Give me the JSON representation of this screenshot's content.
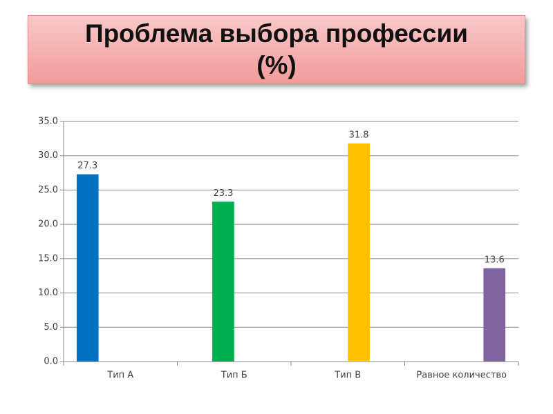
{
  "chart_data": {
    "type": "bar",
    "title": "Проблема выбора профессии (%)",
    "categories": [
      "Тип А",
      "Тип Б",
      "Тип В",
      "Равное количество"
    ],
    "series": [
      {
        "color": "#0070c0",
        "values": [
          27.3,
          null,
          null,
          null
        ]
      },
      {
        "color": "#00b050",
        "values": [
          null,
          23.3,
          null,
          null
        ]
      },
      {
        "color": "#ffc000",
        "values": [
          null,
          null,
          31.8,
          null
        ]
      },
      {
        "color": "#8064a2",
        "values": [
          null,
          null,
          null,
          13.6
        ]
      }
    ],
    "ylim": [
      0,
      35
    ],
    "yticks": [
      {
        "value": 0,
        "label": "0.0"
      },
      {
        "value": 5,
        "label": "5.0"
      },
      {
        "value": 10,
        "label": "10.0"
      },
      {
        "value": 15,
        "label": "15.0"
      },
      {
        "value": 20,
        "label": "20.0"
      },
      {
        "value": 25,
        "label": "25.0"
      },
      {
        "value": 30,
        "label": "30.0"
      },
      {
        "value": 35,
        "label": "35.0"
      }
    ],
    "grid": true
  }
}
